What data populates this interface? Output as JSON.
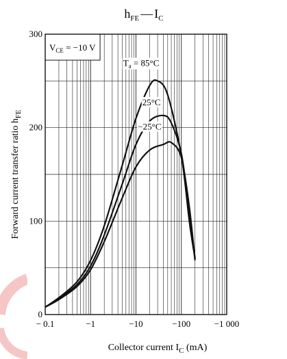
{
  "chart_data": {
    "type": "line",
    "title": {
      "main": "h",
      "main_sub": "FE",
      "dash": "—",
      "second": "I",
      "second_sub": "C"
    },
    "xlabel": {
      "text": "Collector current  I",
      "sub": "C",
      "unit": "  (mA)"
    },
    "ylabel": {
      "text": "Forward current transfer ratio  h",
      "sub": "FE"
    },
    "x_scale": "log",
    "xlim": [
      -0.1,
      -1000
    ],
    "ylim": [
      0,
      300
    ],
    "x_ticks": [
      {
        "value": -0.1,
        "label": "− 0.1"
      },
      {
        "value": -1,
        "label": "−1"
      },
      {
        "value": -10,
        "label": "−10"
      },
      {
        "value": -100,
        "label": "−100"
      },
      {
        "value": -1000,
        "label": "−1 000"
      }
    ],
    "y_ticks": [
      {
        "value": 0,
        "label": "0"
      },
      {
        "value": 100,
        "label": "100"
      },
      {
        "value": 200,
        "label": "200"
      },
      {
        "value": 300,
        "label": "300"
      }
    ],
    "grid": true,
    "condition": {
      "prefix": "V",
      "sub": "CE",
      "suffix": " = −10 V"
    },
    "series": [
      {
        "label_main": "T",
        "label_sub": "a",
        "label_rest": " = 85°C",
        "x": [
          -0.1,
          -0.2,
          -0.5,
          -1,
          -2,
          -5,
          -10,
          -20,
          -30,
          -50,
          -100,
          -150,
          -200
        ],
        "y": [
          8,
          18,
          35,
          58,
          95,
          160,
          210,
          245,
          250,
          235,
          170,
          100,
          60
        ]
      },
      {
        "label_main": "25°C",
        "label_sub": "",
        "label_rest": "",
        "x": [
          -0.1,
          -0.2,
          -0.5,
          -1,
          -2,
          -5,
          -10,
          -20,
          -40,
          -60,
          -100,
          -150,
          -200
        ],
        "y": [
          8,
          17,
          32,
          52,
          85,
          140,
          182,
          207,
          213,
          205,
          172,
          110,
          60
        ]
      },
      {
        "label_main": "−25°C",
        "label_sub": "",
        "label_rest": "",
        "x": [
          -0.1,
          -0.2,
          -0.5,
          -1,
          -2,
          -5,
          -10,
          -20,
          -40,
          -60,
          -100,
          -150,
          -200
        ],
        "y": [
          8,
          16,
          30,
          48,
          78,
          125,
          158,
          176,
          182,
          184,
          168,
          115,
          58
        ]
      }
    ]
  }
}
